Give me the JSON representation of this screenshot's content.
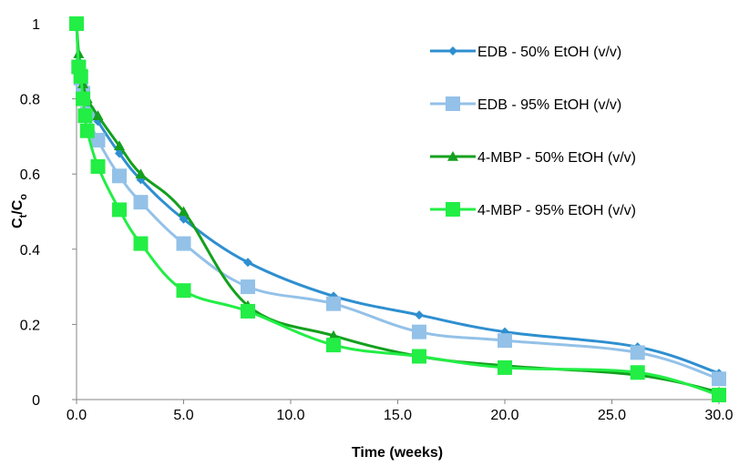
{
  "chart_data": {
    "type": "line",
    "xlabel": "Time (weeks)",
    "ylabel_main": "C",
    "ylabel_sub1": "t",
    "ylabel_sep": "/C",
    "ylabel_sub2": "o",
    "xlim": [
      0,
      30
    ],
    "ylim": [
      0,
      1
    ],
    "x_ticks": [
      0,
      5,
      10,
      15,
      20,
      25,
      30
    ],
    "x_tick_labels": [
      "0.0",
      "5.0",
      "10.0",
      "15.0",
      "20.0",
      "25.0",
      "30.0"
    ],
    "y_ticks": [
      0,
      0.2,
      0.4,
      0.6,
      0.8,
      1
    ],
    "y_tick_labels": [
      "0",
      "0.2",
      "0.4",
      "0.6",
      "0.8",
      "1"
    ],
    "grid": false,
    "legend_position": "right",
    "series": [
      {
        "name": "EDB - 50% EtOH (v/v)",
        "color": "#2e8fd0",
        "marker": "diamond",
        "points": [
          [
            0,
            1.0
          ],
          [
            0.1,
            0.9
          ],
          [
            0.2,
            0.86
          ],
          [
            0.3,
            0.82
          ],
          [
            0.5,
            0.79
          ],
          [
            1,
            0.74
          ],
          [
            2,
            0.655
          ],
          [
            3,
            0.585
          ],
          [
            5,
            0.48
          ],
          [
            8,
            0.365
          ],
          [
            12,
            0.275
          ],
          [
            16,
            0.225
          ],
          [
            20,
            0.18
          ],
          [
            26.2,
            0.14
          ],
          [
            30,
            0.07
          ]
        ]
      },
      {
        "name": "EDB - 95% EtOH (v/v)",
        "color": "#93c1e8",
        "marker": "square",
        "points": [
          [
            0,
            1.0
          ],
          [
            0.1,
            0.885
          ],
          [
            0.2,
            0.855
          ],
          [
            0.3,
            0.815
          ],
          [
            0.5,
            0.76
          ],
          [
            1,
            0.69
          ],
          [
            2,
            0.595
          ],
          [
            3,
            0.525
          ],
          [
            5,
            0.415
          ],
          [
            8,
            0.3
          ],
          [
            12,
            0.255
          ],
          [
            16,
            0.18
          ],
          [
            20,
            0.157
          ],
          [
            26.2,
            0.125
          ],
          [
            30,
            0.055
          ]
        ]
      },
      {
        "name": "4-MBP - 50% EtOH (v/v)",
        "color": "#14a01e",
        "marker": "triangle",
        "points": [
          [
            0,
            1.0
          ],
          [
            0.1,
            0.92
          ],
          [
            0.2,
            0.875
          ],
          [
            0.3,
            0.84
          ],
          [
            0.5,
            0.8
          ],
          [
            1,
            0.755
          ],
          [
            2,
            0.675
          ],
          [
            3,
            0.6
          ],
          [
            5,
            0.5
          ],
          [
            8,
            0.25
          ],
          [
            12,
            0.17
          ],
          [
            16,
            0.115
          ],
          [
            20,
            0.09
          ],
          [
            26.2,
            0.065
          ],
          [
            30,
            0.02
          ]
        ]
      },
      {
        "name": "4-MBP - 95% EtOH (v/v)",
        "color": "#22ee45",
        "marker": "square",
        "points": [
          [
            0,
            1.0
          ],
          [
            0.1,
            0.885
          ],
          [
            0.2,
            0.86
          ],
          [
            0.3,
            0.8
          ],
          [
            0.4,
            0.755
          ],
          [
            0.5,
            0.715
          ],
          [
            1,
            0.62
          ],
          [
            2,
            0.505
          ],
          [
            3,
            0.415
          ],
          [
            5,
            0.29
          ],
          [
            8,
            0.235
          ],
          [
            12,
            0.145
          ],
          [
            16,
            0.115
          ],
          [
            20,
            0.085
          ],
          [
            26.2,
            0.072
          ],
          [
            30,
            0.012
          ]
        ]
      }
    ]
  }
}
